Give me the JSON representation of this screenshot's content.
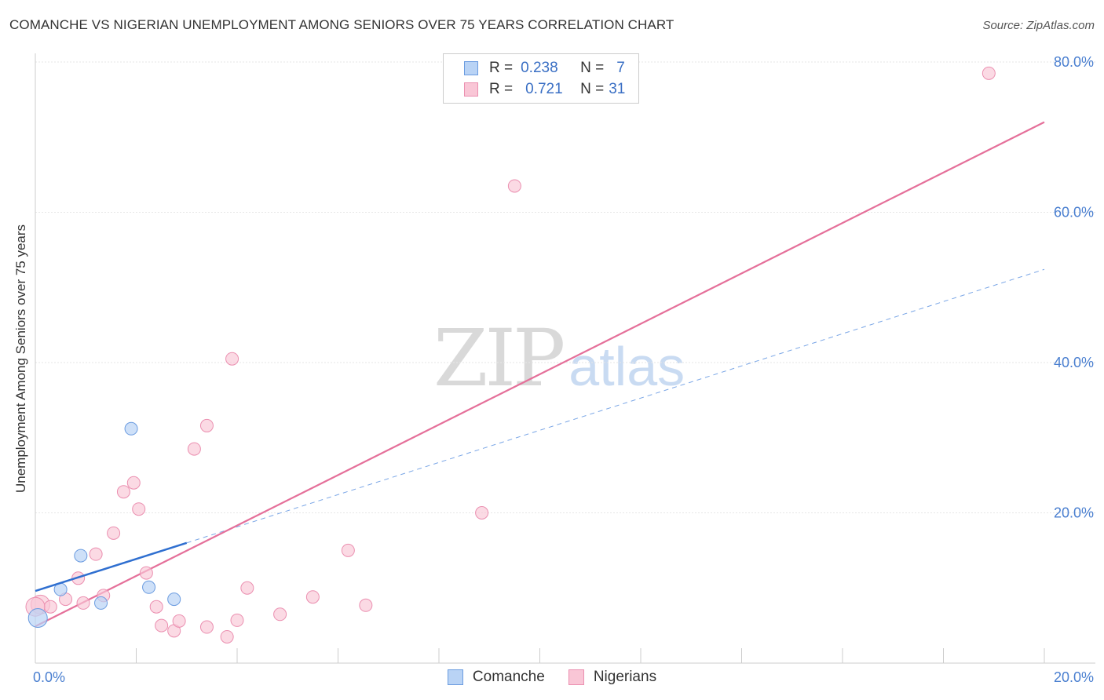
{
  "header": {
    "title": "COMANCHE VS NIGERIAN UNEMPLOYMENT AMONG SENIORS OVER 75 YEARS CORRELATION CHART",
    "source": "Source: ZipAtlas.com"
  },
  "watermark": {
    "zip": "ZIP",
    "atlas": "atlas"
  },
  "legend": {
    "rows": [
      {
        "r_label": "R =",
        "r_value": "0.238",
        "n_label": "N =",
        "n_value": "7"
      },
      {
        "r_label": "R =",
        "r_value": "0.721",
        "n_label": "N =",
        "n_value": "31"
      }
    ]
  },
  "bottom_legend": {
    "comanche": "Comanche",
    "nigerians": "Nigerians"
  },
  "colors": {
    "comanche_fill": "#b9d3f5",
    "comanche_stroke": "#6a9be0",
    "comanche_line": "#2f6fd0",
    "nigerians_fill": "#f9c6d6",
    "nigerians_stroke": "#eb8fb0",
    "nigerians_line": "#e5709a",
    "grid": "#e6e6e6",
    "axis_label": "#4a7fd0"
  },
  "chart_data": {
    "type": "scatter",
    "title": "COMANCHE VS NIGERIAN UNEMPLOYMENT AMONG SENIORS OVER 75 YEARS CORRELATION CHART",
    "xlabel": "",
    "ylabel": "Unemployment Among Seniors over 75 years",
    "xlim": [
      0,
      20
    ],
    "ylim": [
      0,
      80
    ],
    "x_tick_labels": [
      "0.0%",
      "20.0%"
    ],
    "y_ticks": [
      20,
      40,
      60,
      80
    ],
    "y_tick_labels": [
      "20.0%",
      "40.0%",
      "60.0%",
      "80.0%"
    ],
    "grid": true,
    "legend_position": "top-center",
    "series": [
      {
        "name": "Comanche",
        "points": [
          [
            0.05,
            6.0
          ],
          [
            0.5,
            9.8
          ],
          [
            0.9,
            14.3
          ],
          [
            1.3,
            8.0
          ],
          [
            1.9,
            31.2
          ],
          [
            2.25,
            10.1
          ],
          [
            2.75,
            8.5
          ]
        ],
        "trend_solid": {
          "x": [
            0,
            3.0
          ],
          "y": [
            9.6,
            16.0
          ]
        },
        "trend_dashed": {
          "x": [
            3.0,
            20.0
          ],
          "y": [
            16.0,
            52.4
          ]
        }
      },
      {
        "name": "Nigerians",
        "points": [
          [
            0.1,
            7.8
          ],
          [
            0.3,
            7.5
          ],
          [
            0.6,
            8.5
          ],
          [
            0.85,
            11.3
          ],
          [
            0.95,
            8.0
          ],
          [
            1.2,
            14.5
          ],
          [
            1.35,
            9.0
          ],
          [
            1.55,
            17.3
          ],
          [
            1.75,
            22.8
          ],
          [
            1.95,
            24.0
          ],
          [
            2.05,
            20.5
          ],
          [
            2.2,
            12.0
          ],
          [
            2.4,
            7.5
          ],
          [
            2.5,
            5.0
          ],
          [
            2.75,
            4.3
          ],
          [
            2.85,
            5.6
          ],
          [
            3.15,
            28.5
          ],
          [
            3.4,
            31.6
          ],
          [
            3.4,
            4.8
          ],
          [
            3.8,
            3.5
          ],
          [
            3.9,
            40.5
          ],
          [
            4.0,
            5.7
          ],
          [
            4.2,
            10.0
          ],
          [
            4.85,
            6.5
          ],
          [
            5.5,
            8.8
          ],
          [
            6.2,
            15.0
          ],
          [
            6.55,
            7.7
          ],
          [
            8.85,
            20.0
          ],
          [
            9.5,
            63.5
          ],
          [
            18.9,
            78.5
          ],
          [
            0.0,
            7.5
          ]
        ],
        "trend": {
          "x": [
            0,
            20.0
          ],
          "y": [
            4.9,
            72.0
          ]
        }
      }
    ]
  }
}
